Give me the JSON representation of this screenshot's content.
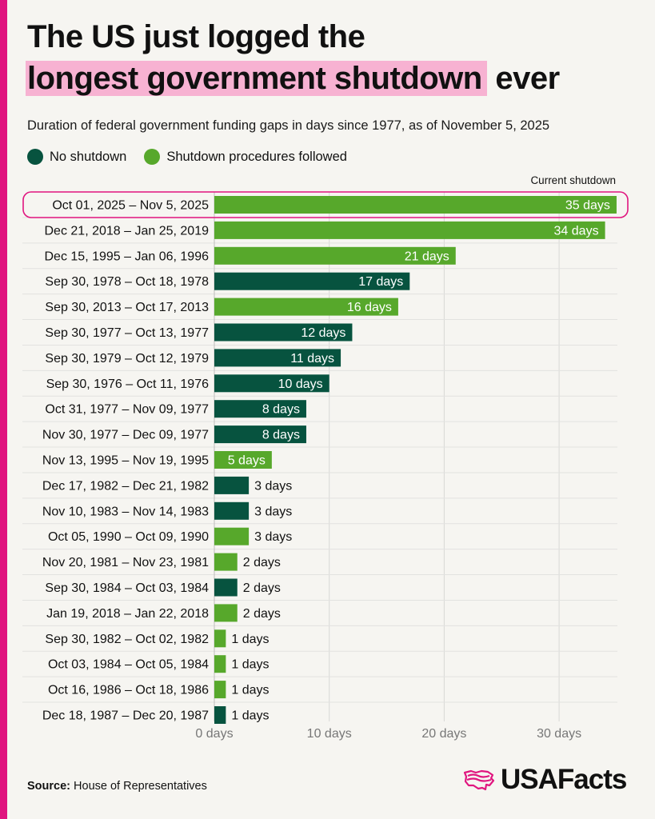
{
  "title": {
    "line1": "The US just logged the",
    "highlight": "longest government shutdown",
    "line2_rest": "ever"
  },
  "subtitle": "Duration of federal government funding gaps in days since 1977, as of November 5, 2025",
  "legend": {
    "no_shutdown": "No shutdown",
    "shutdown_procedures": "Shutdown procedures followed"
  },
  "colors": {
    "no_shutdown": "#07533f",
    "shutdown_procedures": "#57a82b",
    "accent": "#e0157f",
    "highlight": "#f7b2d2"
  },
  "source": {
    "label": "Source:",
    "text": "House of Representatives"
  },
  "logo": {
    "text": "USAFacts",
    "icon": "usa-map-flag-icon"
  },
  "chart_data": {
    "type": "bar",
    "orientation": "horizontal",
    "annotation": "Current shutdown",
    "xlim": [
      0,
      35
    ],
    "x_ticks": [
      0,
      10,
      20,
      30
    ],
    "x_tick_labels": [
      "0 days",
      "10 days",
      "20 days",
      "30 days"
    ],
    "categories": [
      "Oct 01, 2025 – Nov 5, 2025",
      "Dec 21, 2018 – Jan 25, 2019",
      "Dec 15, 1995 – Jan 06, 1996",
      "Sep 30, 1978 – Oct 18, 1978",
      "Sep 30, 2013 – Oct 17, 2013",
      "Sep 30, 1977 – Oct 13, 1977",
      "Sep 30, 1979 – Oct 12, 1979",
      "Sep 30, 1976 – Oct 11, 1976",
      "Oct 31, 1977 – Nov 09, 1977",
      "Nov 30, 1977 – Dec 09, 1977",
      "Nov 13, 1995 – Nov 19, 1995",
      "Dec 17, 1982 – Dec 21, 1982",
      "Nov 10, 1983 – Nov 14, 1983",
      "Oct 05, 1990 – Oct 09, 1990",
      "Nov 20, 1981 – Nov 23, 1981",
      "Sep 30, 1984 – Oct 03, 1984",
      "Jan 19, 2018 – Jan 22, 2018",
      "Sep 30, 1982 – Oct 02, 1982",
      "Oct 03, 1984 – Oct 05, 1984",
      "Oct 16, 1986 – Oct 18, 1986",
      "Dec 18, 1987 – Dec 20, 1987"
    ],
    "values": [
      35,
      34,
      21,
      17,
      16,
      12,
      11,
      10,
      8,
      8,
      5,
      3,
      3,
      3,
      2,
      2,
      2,
      1,
      1,
      1,
      1
    ],
    "value_labels": [
      "35 days",
      "34 days",
      "21 days",
      "17 days",
      "16 days",
      "12 days",
      "11 days",
      "10 days",
      "8 days",
      "8 days",
      "5 days",
      "3 days",
      "3 days",
      "3 days",
      "2 days",
      "2 days",
      "2 days",
      "1 days",
      "1 days",
      "1 days",
      "1 days"
    ],
    "status": [
      "shutdown",
      "shutdown",
      "shutdown",
      "none",
      "shutdown",
      "none",
      "none",
      "none",
      "none",
      "none",
      "shutdown",
      "none",
      "none",
      "shutdown",
      "shutdown",
      "none",
      "shutdown",
      "shutdown",
      "shutdown",
      "shutdown",
      "none"
    ],
    "highlighted_index": 0
  }
}
